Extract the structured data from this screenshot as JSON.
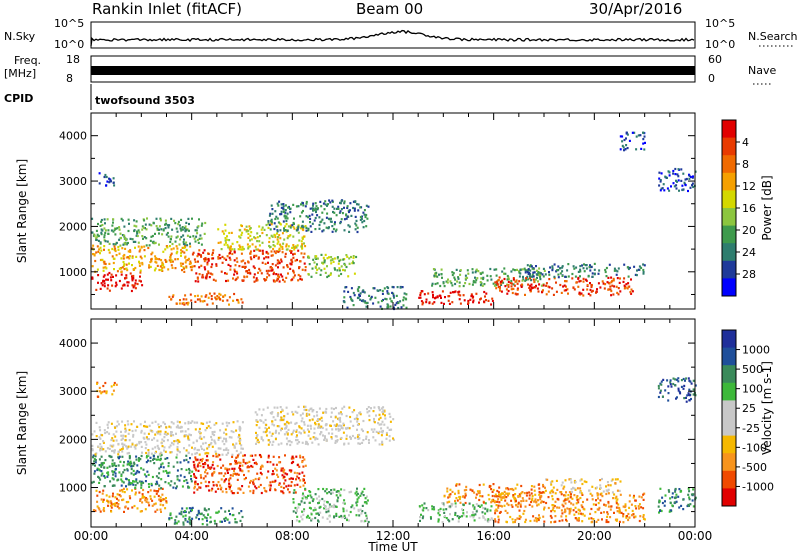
{
  "header": {
    "station": "Rankin Inlet (fitACF)",
    "beam": "Beam 00",
    "date": "30/Apr/2016"
  },
  "scales": {
    "nsky_label": "N.Sky",
    "nsky_top": "10^5",
    "nsky_bottom": "10^0",
    "nsearch_label": "N.Search",
    "nsearch_top": "10^5",
    "nsearch_bottom": "10^0",
    "freq_label": "Freq.",
    "freq_unit": "[MHz]",
    "freq_top": "18",
    "freq_bottom": "8",
    "nave_label": "Nave",
    "nave_top": "60",
    "nave_bottom": "0",
    "cpid_label": "CPID",
    "cpid_value": "twofsound 3503"
  },
  "colors": {
    "power": [
      "#0000ff",
      "#1f3a9a",
      "#2e7d6e",
      "#3e9a4c",
      "#8cc63f",
      "#d4d800",
      "#f5a000",
      "#f06a00",
      "#e83a00",
      "#e10000"
    ],
    "velocity": [
      "#e10000",
      "#f04a00",
      "#f7941d",
      "#f5b800",
      "#c8c8c8",
      "#c8c8c8",
      "#3db83a",
      "#3a8a5a",
      "#1f4f9a",
      "#1f2f9a"
    ]
  },
  "chart_data": [
    {
      "type": "heatmap",
      "name": "power",
      "xlabel": "Time UT",
      "ylabel": "Slant Range [km]",
      "xlim": [
        0,
        24
      ],
      "ylim": [
        180,
        4500
      ],
      "xticks": [
        "00:00",
        "04:00",
        "08:00",
        "12:00",
        "16:00",
        "20:00",
        "00:00"
      ],
      "yticks": [
        "1000",
        "2000",
        "3000",
        "4000"
      ],
      "colorbar_label": "Power [dB]",
      "colorbar_ticks": [
        "4",
        "8",
        "12",
        "16",
        "20",
        "24",
        "28"
      ],
      "regions": [
        {
          "t0": 0.0,
          "t1": 2.0,
          "r0": 600,
          "r1": 1000,
          "level": 9
        },
        {
          "t0": 0.0,
          "t1": 4.0,
          "r0": 1000,
          "r1": 1600,
          "level": 6
        },
        {
          "t0": 0.0,
          "t1": 4.5,
          "r0": 1600,
          "r1": 2200,
          "level": 3
        },
        {
          "t0": 0.3,
          "t1": 1.0,
          "r0": 2900,
          "r1": 3200,
          "level": 1
        },
        {
          "t0": 4.0,
          "t1": 8.5,
          "r0": 800,
          "r1": 1500,
          "level": 8
        },
        {
          "t0": 5.0,
          "t1": 8.5,
          "r0": 1500,
          "r1": 2100,
          "level": 5
        },
        {
          "t0": 7.0,
          "t1": 11.0,
          "r0": 1900,
          "r1": 2600,
          "level": 2
        },
        {
          "t0": 3.0,
          "t1": 6.0,
          "r0": 300,
          "r1": 550,
          "level": 7
        },
        {
          "t0": 8.5,
          "t1": 10.5,
          "r0": 900,
          "r1": 1400,
          "level": 4
        },
        {
          "t0": 10.0,
          "t1": 12.5,
          "r0": 200,
          "r1": 700,
          "level": 2
        },
        {
          "t0": 13.0,
          "t1": 16.0,
          "r0": 300,
          "r1": 600,
          "level": 9
        },
        {
          "t0": 13.5,
          "t1": 18.0,
          "r0": 700,
          "r1": 1100,
          "level": 3
        },
        {
          "t0": 16.0,
          "t1": 21.5,
          "r0": 500,
          "r1": 900,
          "level": 8
        },
        {
          "t0": 17.0,
          "t1": 22.0,
          "r0": 900,
          "r1": 1200,
          "level": 2
        },
        {
          "t0": 22.5,
          "t1": 24.0,
          "r0": 2800,
          "r1": 3300,
          "level": 1
        },
        {
          "t0": 21.0,
          "t1": 22.0,
          "r0": 3700,
          "r1": 4100,
          "level": 1
        }
      ]
    },
    {
      "type": "heatmap",
      "name": "velocity",
      "xlabel": "Time UT",
      "ylabel": "Slant Range [km]",
      "xlim": [
        0,
        24
      ],
      "ylim": [
        180,
        4500
      ],
      "xticks": [
        "00:00",
        "04:00",
        "08:00",
        "12:00",
        "16:00",
        "20:00",
        "00:00"
      ],
      "yticks": [
        "1000",
        "2000",
        "3000",
        "4000"
      ],
      "colorbar_label": "Velocity [m s-1]",
      "colorbar_ticks": [
        "1000",
        "500",
        "100",
        "25",
        "-25",
        "-100",
        "-500",
        "-1000"
      ],
      "regions": [
        {
          "t0": 0.0,
          "t1": 3.0,
          "r0": 500,
          "r1": 1000,
          "level": 2
        },
        {
          "t0": 0.0,
          "t1": 4.0,
          "r0": 1000,
          "r1": 1700,
          "level": 7
        },
        {
          "t0": 0.0,
          "t1": 6.0,
          "r0": 1700,
          "r1": 2400,
          "level": 4
        },
        {
          "t0": 0.2,
          "t1": 1.0,
          "r0": 2900,
          "r1": 3200,
          "level": 2
        },
        {
          "t0": 4.0,
          "t1": 8.5,
          "r0": 900,
          "r1": 1700,
          "level": 1
        },
        {
          "t0": 6.5,
          "t1": 12.0,
          "r0": 1900,
          "r1": 2700,
          "level": 4
        },
        {
          "t0": 3.0,
          "t1": 6.0,
          "r0": 250,
          "r1": 600,
          "level": 7
        },
        {
          "t0": 8.0,
          "t1": 11.0,
          "r0": 300,
          "r1": 1000,
          "level": 6
        },
        {
          "t0": 13.0,
          "t1": 16.0,
          "r0": 300,
          "r1": 700,
          "level": 6
        },
        {
          "t0": 14.0,
          "t1": 18.0,
          "r0": 700,
          "r1": 1100,
          "level": 2
        },
        {
          "t0": 16.0,
          "t1": 22.0,
          "r0": 300,
          "r1": 900,
          "level": 2
        },
        {
          "t0": 18.0,
          "t1": 21.0,
          "r0": 900,
          "r1": 1200,
          "level": 3
        },
        {
          "t0": 22.5,
          "t1": 24.0,
          "r0": 500,
          "r1": 1000,
          "level": 7
        },
        {
          "t0": 22.5,
          "t1": 24.0,
          "r0": 2800,
          "r1": 3300,
          "level": 8
        }
      ]
    }
  ]
}
